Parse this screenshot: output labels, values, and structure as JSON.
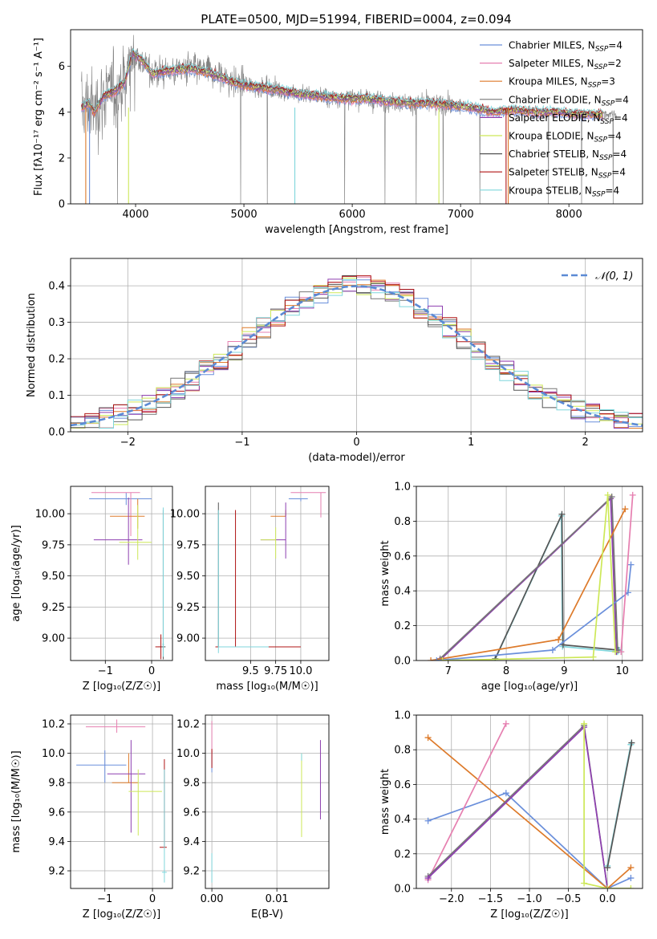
{
  "figure": {
    "title": "PLATE=0500, MJD=51994, FIBERID=0004, z=0.094"
  },
  "colors": {
    "chabrier_miles": "#6a8fdb",
    "salpeter_miles": "#e67fb0",
    "kroupa_miles": "#dd7a2a",
    "chabrier_elodie": "#777777",
    "salpeter_elodie": "#8e3fb0",
    "kroupa_elodie": "#cde858",
    "chabrier_stelib": "#555555",
    "salpeter_stelib": "#b01515",
    "kroupa_stelib": "#7fd6dc",
    "data_gray": "#808080"
  },
  "chart_data": [
    {
      "id": "spectrum",
      "type": "line",
      "xlabel": "wavelength [Angstrom, rest frame]",
      "ylabel": "Flux [fλ10⁻¹⁷ erg cm⁻² s⁻¹ A⁻¹]",
      "xlim": [
        3400,
        8680
      ],
      "ylim": [
        0,
        7.6
      ],
      "xticks": [
        "4000",
        "5000",
        "6000",
        "7000",
        "8000"
      ],
      "yticks": [
        "0",
        "2",
        "4",
        "6"
      ],
      "grid": false,
      "legend_position": "top-right",
      "legend": [
        {
          "label": "Chabrier MILES, N",
          "sub": "SSP",
          "suffix": "=4",
          "color": "#6a8fdb"
        },
        {
          "label": "Salpeter MILES, N",
          "sub": "SSP",
          "suffix": "=2",
          "color": "#e67fb0"
        },
        {
          "label": "Kroupa MILES, N",
          "sub": "SSP",
          "suffix": "=3",
          "color": "#dd7a2a"
        },
        {
          "label": "Chabrier ELODIE, N",
          "sub": "SSP",
          "suffix": "=4",
          "color": "#777777"
        },
        {
          "label": "Salpeter ELODIE, N",
          "sub": "SSP",
          "suffix": "=4",
          "color": "#8e3fb0"
        },
        {
          "label": "Kroupa ELODIE, N",
          "sub": "SSP",
          "suffix": "=4",
          "color": "#cde858"
        },
        {
          "label": "Chabrier STELIB, N",
          "sub": "SSP",
          "suffix": "=4",
          "color": "#555555"
        },
        {
          "label": "Salpeter STELIB, N",
          "sub": "SSP",
          "suffix": "=4",
          "color": "#b01515"
        },
        {
          "label": "Kroupa STELIB, N",
          "sub": "SSP",
          "suffix": "=4",
          "color": "#7fd6dc"
        }
      ],
      "continuum": {
        "x": [
          3500,
          3560,
          3620,
          3700,
          3800,
          3900,
          3970,
          4050,
          4150,
          4300,
          4500,
          4700,
          4900,
          5100,
          5300,
          5500,
          5700,
          5900,
          6100,
          6300,
          6500,
          6700,
          6900,
          7100,
          7300,
          7500,
          7700,
          7900,
          8100,
          8300
        ],
        "y": [
          4.2,
          4.4,
          4.0,
          4.7,
          4.9,
          5.3,
          6.6,
          6.3,
          5.7,
          5.8,
          5.9,
          5.7,
          5.3,
          5.1,
          5.0,
          4.8,
          4.7,
          4.6,
          4.6,
          4.5,
          4.4,
          4.4,
          4.3,
          4.2,
          4.0,
          4.1,
          4.0,
          4.0,
          3.9,
          3.9
        ]
      }
    },
    {
      "id": "residuals",
      "type": "line",
      "xlabel": "(data-model)/error",
      "ylabel": "Normed distribution",
      "xlim": [
        -2.5,
        2.5
      ],
      "ylim": [
        0,
        0.475
      ],
      "xticks": [
        -2,
        -1,
        0,
        1,
        2
      ],
      "yticks": [
        0.0,
        0.1,
        0.2,
        0.3,
        0.4
      ],
      "grid": true,
      "legend_position": "top-right",
      "reference_label": "𝒩(0, 1)",
      "bins": 40
    },
    {
      "id": "age_vs_Z",
      "type": "scatter",
      "xlabel": "Z [log₁₀(Z/Z☉)]",
      "ylabel": "age  [log₁₀(age/yr)]",
      "xlim": [
        -1.75,
        0.45
      ],
      "ylim": [
        8.82,
        10.22
      ],
      "xticks": [
        -1,
        0
      ],
      "yticks": [
        9.0,
        9.25,
        9.5,
        9.75,
        10.0
      ],
      "grid": true
    },
    {
      "id": "age_vs_mass",
      "type": "scatter",
      "xlabel": "mass [log₁₀(M/M☉)]",
      "ylabel": "",
      "xlim": [
        9.05,
        10.28
      ],
      "ylim": [
        8.82,
        10.22
      ],
      "xticks": [
        9.5,
        9.75,
        10.0
      ],
      "yticks": [
        9.0,
        9.25,
        9.5,
        9.75,
        10.0
      ],
      "grid": true
    },
    {
      "id": "weight_vs_age",
      "type": "line",
      "xlabel": "age  [log₁₀(age/yr)]",
      "ylabel": "mass weight",
      "xlim": [
        6.45,
        10.35
      ],
      "ylim": [
        0,
        1.0
      ],
      "xticks": [
        7,
        8,
        9,
        10
      ],
      "yticks": [
        0.0,
        0.2,
        0.4,
        0.6,
        0.8,
        1.0
      ],
      "grid": true,
      "series": [
        {
          "color": "#7fd6dc",
          "x": [
            7.8,
            8.95,
            8.97,
            9.92,
            9.95
          ],
          "y": [
            0.0,
            0.83,
            0.08,
            0.05,
            0.06
          ]
        },
        {
          "color": "#555555",
          "x": [
            7.81,
            8.96,
            8.98,
            9.93
          ],
          "y": [
            0.01,
            0.84,
            0.09,
            0.06
          ]
        },
        {
          "color": "#8e3fb0",
          "x": [
            6.85,
            9.8,
            9.9
          ],
          "y": [
            0.0,
            0.93,
            0.05
          ]
        },
        {
          "color": "#777777",
          "x": [
            6.86,
            9.82,
            9.92
          ],
          "y": [
            0.01,
            0.94,
            0.06
          ]
        },
        {
          "color": "#dd7a2a",
          "x": [
            6.7,
            8.9,
            10.05
          ],
          "y": [
            0.0,
            0.12,
            0.87
          ]
        },
        {
          "color": "#6a8fdb",
          "x": [
            6.8,
            8.8,
            10.1,
            10.15
          ],
          "y": [
            0.0,
            0.06,
            0.39,
            0.55
          ]
        },
        {
          "color": "#cde858",
          "x": [
            6.9,
            9.5,
            9.75,
            9.88
          ],
          "y": [
            0.0,
            0.02,
            0.95,
            0.05
          ]
        },
        {
          "color": "#e67fb0",
          "x": [
            9.98,
            10.18
          ],
          "y": [
            0.05,
            0.95
          ]
        }
      ]
    },
    {
      "id": "mass_vs_Z",
      "type": "scatter",
      "xlabel": "Z [log₁₀(Z/Z☉)]",
      "ylabel": "mass [log₁₀(M/M☉)]",
      "xlim": [
        -1.72,
        0.42
      ],
      "ylim": [
        9.08,
        10.26
      ],
      "xticks": [
        -1,
        0
      ],
      "yticks": [
        9.2,
        9.4,
        9.6,
        9.8,
        10.0,
        10.2
      ],
      "grid": true
    },
    {
      "id": "mass_vs_EBV",
      "type": "scatter",
      "xlabel": "E(B-V)",
      "ylabel": "",
      "xlim": [
        -0.001,
        0.018
      ],
      "ylim": [
        9.08,
        10.26
      ],
      "xticks": [
        0.0,
        0.01
      ],
      "yticks": [
        9.2,
        9.4,
        9.6,
        9.8,
        10.0,
        10.2
      ],
      "grid": true
    },
    {
      "id": "weight_vs_Z",
      "type": "line",
      "xlabel": "Z [log₁₀(Z/Z☉)]",
      "ylabel": "mass weight",
      "xlim": [
        -2.45,
        0.45
      ],
      "ylim": [
        0,
        1.0
      ],
      "xticks": [
        -2.0,
        -1.5,
        -1.0,
        -0.5,
        0.0
      ],
      "yticks": [
        0.0,
        0.2,
        0.4,
        0.6,
        0.8,
        1.0
      ],
      "grid": true,
      "series": [
        {
          "color": "#6a8fdb",
          "x": [
            -2.3,
            -1.3,
            0.0,
            0.3
          ],
          "y": [
            0.39,
            0.55,
            0.0,
            0.06
          ]
        },
        {
          "color": "#dd7a2a",
          "x": [
            -2.3,
            0.0,
            0.3
          ],
          "y": [
            0.87,
            0.0,
            0.12
          ]
        },
        {
          "color": "#e67fb0",
          "x": [
            -2.3,
            -1.3
          ],
          "y": [
            0.05,
            0.95
          ]
        },
        {
          "color": "#777777",
          "x": [
            -2.3,
            -0.3,
            0.0
          ],
          "y": [
            0.07,
            0.94,
            0.0
          ]
        },
        {
          "color": "#8e3fb0",
          "x": [
            -2.3,
            -0.3,
            0.0
          ],
          "y": [
            0.06,
            0.93,
            0.0
          ]
        },
        {
          "color": "#cde858",
          "x": [
            -0.3,
            -0.3,
            0.0,
            0.3
          ],
          "y": [
            0.95,
            0.03,
            0.0,
            0.0
          ]
        },
        {
          "color": "#7fd6dc",
          "x": [
            0.0,
            0.3,
            0.3
          ],
          "y": [
            0.13,
            0.83,
            0.83
          ]
        },
        {
          "color": "#555555",
          "x": [
            0.0,
            0.31
          ],
          "y": [
            0.12,
            0.84
          ]
        }
      ]
    }
  ]
}
